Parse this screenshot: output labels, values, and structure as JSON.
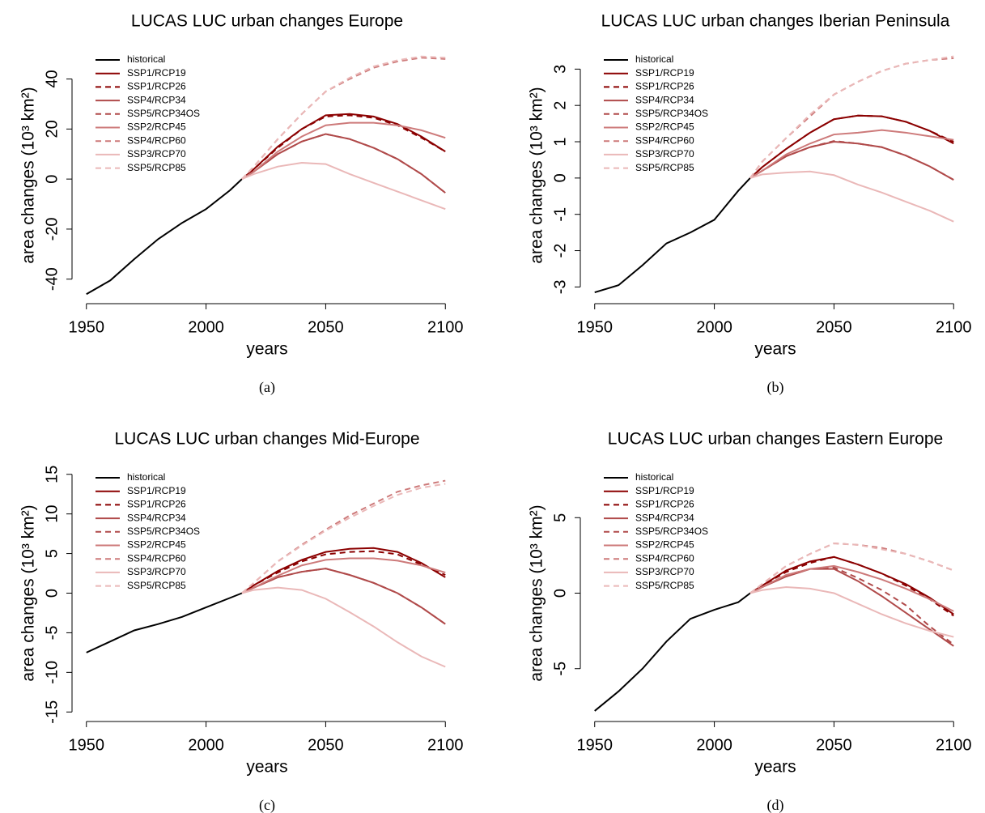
{
  "chart_data": [
    {
      "type": "line",
      "title": "LUCAS LUC urban changes Europe",
      "caption": "(a)",
      "xlabel": "years",
      "ylabel": "area changes (10³ km²)",
      "x": [
        1950,
        1960,
        1970,
        1980,
        1990,
        2000,
        2010,
        2015,
        2020,
        2030,
        2040,
        2050,
        2060,
        2070,
        2080,
        2090,
        2100
      ],
      "xlim": [
        1944,
        2106
      ],
      "xticks": [
        1950,
        2000,
        2050,
        2100
      ],
      "ylim": [
        -49.8,
        52.8
      ],
      "yticks": [
        -40,
        -20,
        0,
        20,
        40
      ],
      "legend": "top-left",
      "series": [
        {
          "name": "historical",
          "color": "#000000",
          "dash": false,
          "values": [
            -46,
            -40.5,
            -32,
            -24,
            -17.5,
            -12,
            -4.5,
            0,
            null,
            null,
            null,
            null,
            null,
            null,
            null,
            null,
            null
          ]
        },
        {
          "name": "SSP1/RCP19",
          "color": "#8b0000",
          "dash": false,
          "values": [
            null,
            null,
            null,
            null,
            null,
            null,
            null,
            0,
            4,
            13,
            20,
            25.5,
            26,
            25,
            22,
            17,
            11
          ]
        },
        {
          "name": "SSP1/RCP26",
          "color": "#8b0000",
          "dash": true,
          "values": [
            null,
            null,
            null,
            null,
            null,
            null,
            null,
            0,
            4,
            12.5,
            20,
            25,
            25.5,
            24.5,
            21.5,
            16.5,
            11
          ]
        },
        {
          "name": "SSP4/RCP34",
          "color": "#b04a4a",
          "dash": false,
          "values": [
            null,
            null,
            null,
            null,
            null,
            null,
            null,
            0,
            3,
            10,
            15,
            18,
            16,
            12.5,
            8,
            2,
            -5.5
          ]
        },
        {
          "name": "SSP5/RCP34OS",
          "color": "#b04a4a",
          "dash": true,
          "values": [
            null,
            null,
            null,
            null,
            null,
            null,
            null,
            0,
            3,
            10,
            15,
            18,
            16,
            12.5,
            8,
            2,
            -5.5
          ]
        },
        {
          "name": "SSP2/RCP45",
          "color": "#cd7a7a",
          "dash": false,
          "values": [
            null,
            null,
            null,
            null,
            null,
            null,
            null,
            0,
            3,
            11,
            17,
            21.5,
            22.5,
            22.5,
            21.5,
            19.5,
            16.5
          ]
        },
        {
          "name": "SSP4/RCP60",
          "color": "#cd7a7a",
          "dash": true,
          "values": [
            null,
            null,
            null,
            null,
            null,
            null,
            null,
            0,
            5,
            16,
            26,
            35,
            40,
            44.5,
            47,
            48.5,
            48
          ]
        },
        {
          "name": "SSP3/RCP70",
          "color": "#eab8b8",
          "dash": false,
          "values": [
            null,
            null,
            null,
            null,
            null,
            null,
            null,
            0,
            2,
            5,
            6.5,
            6,
            2,
            -1.5,
            -5,
            -8.5,
            -12
          ]
        },
        {
          "name": "SSP5/RCP85",
          "color": "#eab8b8",
          "dash": true,
          "values": [
            null,
            null,
            null,
            null,
            null,
            null,
            null,
            0,
            5,
            16,
            26,
            35,
            40.5,
            45,
            47.5,
            49,
            48.5
          ]
        }
      ]
    },
    {
      "type": "line",
      "title": "LUCAS LUC urban changes Iberian Peninsula",
      "caption": "(b)",
      "xlabel": "years",
      "ylabel": "area changes (10³ km²)",
      "x": [
        1950,
        1960,
        1970,
        1980,
        1990,
        2000,
        2010,
        2015,
        2020,
        2030,
        2040,
        2050,
        2060,
        2070,
        2080,
        2090,
        2100
      ],
      "xlim": [
        1944,
        2106
      ],
      "xticks": [
        1950,
        2000,
        2050,
        2100
      ],
      "ylim": [
        -3.46,
        3.61
      ],
      "yticks": [
        -3,
        -2,
        -1,
        0,
        1,
        2,
        3
      ],
      "legend": "top-left",
      "series": [
        {
          "name": "historical",
          "color": "#000000",
          "dash": false,
          "values": [
            -3.15,
            -2.95,
            -2.4,
            -1.8,
            -1.5,
            -1.15,
            -0.35,
            0,
            null,
            null,
            null,
            null,
            null,
            null,
            null,
            null,
            null
          ]
        },
        {
          "name": "SSP1/RCP19",
          "color": "#8b0000",
          "dash": false,
          "values": [
            null,
            null,
            null,
            null,
            null,
            null,
            null,
            0,
            0.3,
            0.8,
            1.25,
            1.62,
            1.72,
            1.7,
            1.55,
            1.3,
            0.95
          ]
        },
        {
          "name": "SSP1/RCP26",
          "color": "#8b0000",
          "dash": true,
          "values": [
            null,
            null,
            null,
            null,
            null,
            null,
            null,
            0,
            0.3,
            0.8,
            1.25,
            1.62,
            1.72,
            1.7,
            1.55,
            1.3,
            1.0
          ]
        },
        {
          "name": "SSP4/RCP34",
          "color": "#b04a4a",
          "dash": false,
          "values": [
            null,
            null,
            null,
            null,
            null,
            null,
            null,
            0,
            0.2,
            0.6,
            0.85,
            1.0,
            0.95,
            0.85,
            0.62,
            0.32,
            -0.05
          ]
        },
        {
          "name": "SSP5/RCP34OS",
          "color": "#b04a4a",
          "dash": true,
          "values": [
            null,
            null,
            null,
            null,
            null,
            null,
            null,
            0,
            0.2,
            0.6,
            0.85,
            1.02,
            0.95,
            0.85,
            0.62,
            0.32,
            -0.05
          ]
        },
        {
          "name": "SSP2/RCP45",
          "color": "#cd7a7a",
          "dash": false,
          "values": [
            null,
            null,
            null,
            null,
            null,
            null,
            null,
            0,
            0.2,
            0.65,
            0.95,
            1.2,
            1.25,
            1.32,
            1.25,
            1.15,
            1.05
          ]
        },
        {
          "name": "SSP4/RCP60",
          "color": "#cd7a7a",
          "dash": true,
          "values": [
            null,
            null,
            null,
            null,
            null,
            null,
            null,
            0,
            0.45,
            1.1,
            1.7,
            2.3,
            2.65,
            2.95,
            3.15,
            3.25,
            3.3
          ]
        },
        {
          "name": "SSP3/RCP70",
          "color": "#eab8b8",
          "dash": false,
          "values": [
            null,
            null,
            null,
            null,
            null,
            null,
            null,
            0,
            0.1,
            0.15,
            0.18,
            0.08,
            -0.18,
            -0.4,
            -0.65,
            -0.9,
            -1.2
          ]
        },
        {
          "name": "SSP5/RCP85",
          "color": "#eab8b8",
          "dash": true,
          "values": [
            null,
            null,
            null,
            null,
            null,
            null,
            null,
            0,
            0.45,
            1.1,
            1.75,
            2.3,
            2.65,
            2.95,
            3.15,
            3.25,
            3.35
          ]
        }
      ]
    },
    {
      "type": "line",
      "title": "LUCAS LUC urban changes Mid-Europe",
      "caption": "(c)",
      "xlabel": "years",
      "ylabel": "area changes (10³ km²)",
      "x": [
        1950,
        1960,
        1970,
        1980,
        1990,
        2000,
        2010,
        2015,
        2020,
        2030,
        2040,
        2050,
        2060,
        2070,
        2080,
        2090,
        2100
      ],
      "xlim": [
        1944,
        2106
      ],
      "xticks": [
        1950,
        2000,
        2050,
        2100
      ],
      "ylim": [
        -16.2,
        16.2
      ],
      "yticks": [
        -15,
        -10,
        -5,
        0,
        5,
        10,
        15
      ],
      "legend": "top-left",
      "series": [
        {
          "name": "historical",
          "color": "#000000",
          "dash": false,
          "values": [
            -7.5,
            -6.1,
            -4.7,
            -3.9,
            -3.0,
            -1.8,
            -0.6,
            0,
            null,
            null,
            null,
            null,
            null,
            null,
            null,
            null,
            null
          ]
        },
        {
          "name": "SSP1/RCP19",
          "color": "#8b0000",
          "dash": false,
          "values": [
            null,
            null,
            null,
            null,
            null,
            null,
            null,
            0,
            1,
            2.8,
            4.2,
            5.2,
            5.6,
            5.7,
            5.2,
            3.8,
            2.0
          ]
        },
        {
          "name": "SSP1/RCP26",
          "color": "#8b0000",
          "dash": true,
          "values": [
            null,
            null,
            null,
            null,
            null,
            null,
            null,
            0,
            1,
            2.6,
            4,
            4.9,
            5.2,
            5.3,
            4.9,
            3.6,
            2.3
          ]
        },
        {
          "name": "SSP4/RCP34",
          "color": "#b04a4a",
          "dash": false,
          "values": [
            null,
            null,
            null,
            null,
            null,
            null,
            null,
            0,
            0.7,
            2,
            2.7,
            3.1,
            2.3,
            1.3,
            0,
            -1.8,
            -3.9
          ]
        },
        {
          "name": "SSP5/RCP34OS",
          "color": "#b04a4a",
          "dash": true,
          "values": [
            null,
            null,
            null,
            null,
            null,
            null,
            null,
            0,
            0.7,
            2,
            2.7,
            3.1,
            2.3,
            1.3,
            0,
            -1.8,
            -3.9
          ]
        },
        {
          "name": "SSP2/RCP45",
          "color": "#cd7a7a",
          "dash": false,
          "values": [
            null,
            null,
            null,
            null,
            null,
            null,
            null,
            0,
            0.7,
            2.2,
            3.5,
            4.2,
            4.4,
            4.4,
            4.1,
            3.5,
            2.6
          ]
        },
        {
          "name": "SSP4/RCP60",
          "color": "#cd7a7a",
          "dash": true,
          "values": [
            null,
            null,
            null,
            null,
            null,
            null,
            null,
            0,
            1.3,
            4,
            6.1,
            8,
            9.8,
            11.3,
            12.8,
            13.6,
            14.2
          ]
        },
        {
          "name": "SSP3/RCP70",
          "color": "#eab8b8",
          "dash": false,
          "values": [
            null,
            null,
            null,
            null,
            null,
            null,
            null,
            0,
            0.4,
            0.7,
            0.4,
            -0.7,
            -2.4,
            -4.2,
            -6.2,
            -8,
            -9.3
          ]
        },
        {
          "name": "SSP5/RCP85",
          "color": "#eab8b8",
          "dash": true,
          "values": [
            null,
            null,
            null,
            null,
            null,
            null,
            null,
            0,
            1.3,
            4,
            6,
            7.9,
            9.5,
            11,
            12.4,
            13.3,
            13.8
          ]
        }
      ]
    },
    {
      "type": "line",
      "title": "LUCAS LUC urban changes Eastern Europe",
      "caption": "(d)",
      "xlabel": "years",
      "ylabel": "area changes (10³ km²)",
      "x": [
        1950,
        1960,
        1970,
        1980,
        1990,
        2000,
        2010,
        2015,
        2020,
        2030,
        2040,
        2050,
        2060,
        2070,
        2080,
        2090,
        2100
      ],
      "xlim": [
        1944,
        2106
      ],
      "xticks": [
        1950,
        2000,
        2050,
        2100
      ],
      "ylim": [
        -8.5,
        8.5
      ],
      "yticks": [
        -5,
        0,
        5
      ],
      "legend": "top-left",
      "series": [
        {
          "name": "historical",
          "color": "#000000",
          "dash": false,
          "values": [
            -7.8,
            -6.5,
            -5,
            -3.2,
            -1.7,
            -1.1,
            -0.6,
            0,
            null,
            null,
            null,
            null,
            null,
            null,
            null,
            null,
            null
          ]
        },
        {
          "name": "SSP1/RCP19",
          "color": "#8b0000",
          "dash": false,
          "values": [
            null,
            null,
            null,
            null,
            null,
            null,
            null,
            0,
            0.5,
            1.5,
            2.1,
            2.4,
            1.9,
            1.3,
            0.6,
            -0.3,
            -1.4
          ]
        },
        {
          "name": "SSP1/RCP26",
          "color": "#8b0000",
          "dash": true,
          "values": [
            null,
            null,
            null,
            null,
            null,
            null,
            null,
            0,
            0.5,
            1.4,
            2,
            2.4,
            1.9,
            1.3,
            0.5,
            -0.4,
            -1.5
          ]
        },
        {
          "name": "SSP4/RCP34",
          "color": "#b04a4a",
          "dash": false,
          "values": [
            null,
            null,
            null,
            null,
            null,
            null,
            null,
            0,
            0.4,
            1.1,
            1.6,
            1.6,
            0.8,
            -0.2,
            -1.3,
            -2.4,
            -3.5
          ]
        },
        {
          "name": "SSP5/RCP34OS",
          "color": "#b04a4a",
          "dash": true,
          "values": [
            null,
            null,
            null,
            null,
            null,
            null,
            null,
            0,
            0.4,
            1.2,
            1.6,
            1.7,
            1.0,
            0.2,
            -0.8,
            -2.2,
            -3.4
          ]
        },
        {
          "name": "SSP2/RCP45",
          "color": "#cd7a7a",
          "dash": false,
          "values": [
            null,
            null,
            null,
            null,
            null,
            null,
            null,
            0,
            0.4,
            1.2,
            1.6,
            1.8,
            1.4,
            0.9,
            0.3,
            -0.4,
            -1.2
          ]
        },
        {
          "name": "SSP4/RCP60",
          "color": "#cd7a7a",
          "dash": true,
          "values": [
            null,
            null,
            null,
            null,
            null,
            null,
            null,
            0,
            0.6,
            1.8,
            2.6,
            3.3,
            3.2,
            3.0,
            2.6,
            2.1,
            1.5
          ]
        },
        {
          "name": "SSP3/RCP70",
          "color": "#eab8b8",
          "dash": false,
          "values": [
            null,
            null,
            null,
            null,
            null,
            null,
            null,
            0,
            0.2,
            0.4,
            0.3,
            0,
            -0.7,
            -1.4,
            -2,
            -2.5,
            -2.9
          ]
        },
        {
          "name": "SSP5/RCP85",
          "color": "#eab8b8",
          "dash": true,
          "values": [
            null,
            null,
            null,
            null,
            null,
            null,
            null,
            0,
            0.6,
            1.8,
            2.6,
            3.3,
            3.2,
            2.9,
            2.6,
            2.1,
            1.5
          ]
        }
      ]
    }
  ]
}
